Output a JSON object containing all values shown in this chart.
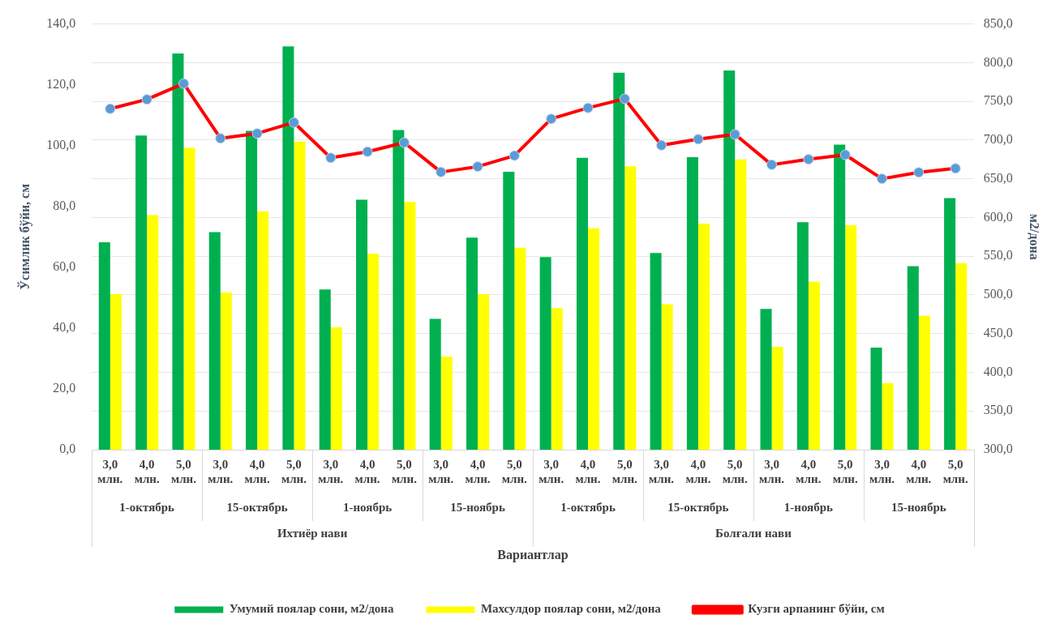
{
  "chart_data": {
    "type": "bar",
    "xlabel": "Вариантлар",
    "ylabel": "Ўсимлик бўйи, см",
    "y2label": "м2/дона",
    "categories": [
      "3,0 млн.",
      "4,0 млн.",
      "5,0 млн.",
      "3,0 млн.",
      "4,0 млн.",
      "5,0 млн.",
      "3,0 млн.",
      "4,0 млн.",
      "5,0 млн.",
      "3,0 млн.",
      "4,0 млн.",
      "5,0 млн.",
      "3,0 млн.",
      "4,0 млн.",
      "5,0 млн.",
      "3,0 млн.",
      "4,0 млн.",
      "5,0 млн.",
      "3,0 млн.",
      "4,0 млн.",
      "5,0 млн.",
      "3,0 млн.",
      "4,0 млн.",
      "5,0 млн."
    ],
    "series": [
      {
        "name": "Умумий поялар сони, м2/дона",
        "axis": "y2",
        "color": "#00b050",
        "values": [
          568,
          706,
          812,
          581,
          712,
          821,
          507,
          623,
          713,
          469,
          574,
          659,
          549,
          677,
          787,
          554,
          678,
          790,
          482,
          594,
          694,
          432,
          537,
          625
        ]
      },
      {
        "name": "Махсулдор поялар сони, м2/дона",
        "axis": "y2",
        "color": "#ffff00",
        "values": [
          501,
          603,
          690,
          503,
          608,
          698,
          458,
          553,
          620,
          420,
          501,
          561,
          483,
          586,
          666,
          488,
          592,
          675,
          433,
          517,
          590,
          386,
          473,
          541
        ]
      },
      {
        "name": "Кузги арпанинг бўйи, см",
        "type": "line",
        "axis": "y",
        "color": "#ff0000",
        "marker": "circle",
        "line_style": "solid",
        "values": [
          112.1,
          115.2,
          120.4,
          102.4,
          104.0,
          107.6,
          96.0,
          98.0,
          101.0,
          91.3,
          93.1,
          96.7,
          108.8,
          112.4,
          115.4,
          100.1,
          102.1,
          103.7,
          93.7,
          95.5,
          97.0,
          89.1,
          91.2,
          92.5
        ]
      }
    ],
    "ylim": [
      0,
      140
    ],
    "yticks": [
      {
        "value": 0,
        "label": "0,0"
      },
      {
        "value": 20,
        "label": "20,0"
      },
      {
        "value": 40,
        "label": "40,0"
      },
      {
        "value": 60,
        "label": "60,0"
      },
      {
        "value": 80,
        "label": "80,0"
      },
      {
        "value": 100,
        "label": "100,0"
      },
      {
        "value": 120,
        "label": "120,0"
      },
      {
        "value": 140,
        "label": "140,0"
      }
    ],
    "y2lim": [
      300,
      850
    ],
    "y2ticks": [
      {
        "value": 300,
        "label": "300,0"
      },
      {
        "value": 350,
        "label": "350,0"
      },
      {
        "value": 400,
        "label": "400,0"
      },
      {
        "value": 450,
        "label": "450,0"
      },
      {
        "value": 500,
        "label": "500,0"
      },
      {
        "value": 550,
        "label": "550,0"
      },
      {
        "value": 600,
        "label": "600,0"
      },
      {
        "value": 650,
        "label": "650,0"
      },
      {
        "value": 700,
        "label": "700,0"
      },
      {
        "value": 750,
        "label": "750,0"
      },
      {
        "value": 800,
        "label": "800,0"
      },
      {
        "value": 850,
        "label": "850,0"
      }
    ],
    "annotations": [
      "1-октябрь",
      "15-октябрь",
      "1-ноябрь",
      "15-ноябрь",
      "1-октябрь",
      "15-октябрь",
      "1-ноябрь",
      "15-ноябрь",
      "Ихтиёр нави",
      "Болғали нави"
    ],
    "grid": "y2",
    "legend": "bottom"
  }
}
